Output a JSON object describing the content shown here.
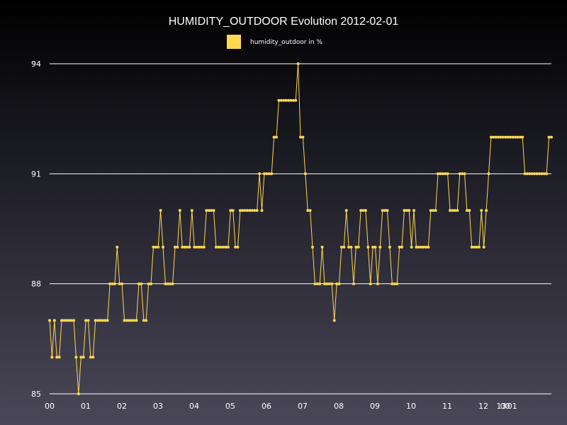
{
  "colors": {
    "series": "#ffd84f",
    "grid": "#ffffff",
    "text": "#ffffff"
  },
  "chart_data": {
    "type": "line",
    "title": "HUMIDITY_OUTDOOR Evolution 2012-02-01",
    "xlabel": "",
    "ylabel": "",
    "ylim": [
      85,
      94
    ],
    "yticks": [
      85,
      88,
      91,
      94
    ],
    "grid": true,
    "legend_placement": "top-center",
    "x_tick_labels": [
      "00",
      "01",
      "02",
      "03",
      "04",
      "05",
      "06",
      "07",
      "08",
      "09",
      "10",
      "11",
      "12",
      "13",
      "00",
      "01"
    ],
    "x_tick_positions_hours": [
      0,
      1,
      2,
      3,
      4,
      5,
      6,
      7,
      8,
      9,
      10,
      11,
      12,
      12.5,
      12.6,
      12.8
    ],
    "x_hour_range": [
      0,
      14
    ],
    "series": [
      {
        "name": "humidity_outdoor in %",
        "values": [
          87,
          86,
          87,
          86,
          86,
          87,
          87,
          87,
          87,
          87,
          87,
          86,
          85,
          86,
          86,
          87,
          87,
          86,
          86,
          87,
          87,
          87,
          87,
          87,
          87,
          88,
          88,
          88,
          89,
          88,
          88,
          87,
          87,
          87,
          87,
          87,
          87,
          88,
          88,
          87,
          87,
          88,
          88,
          89,
          89,
          89,
          90,
          89,
          88,
          88,
          88,
          88,
          89,
          89,
          90,
          89,
          89,
          89,
          89,
          90,
          89,
          89,
          89,
          89,
          89,
          90,
          90,
          90,
          90,
          89,
          89,
          89,
          89,
          89,
          89,
          90,
          90,
          89,
          89,
          90,
          90,
          90,
          90,
          90,
          90,
          90,
          90,
          91,
          90,
          91,
          91,
          91,
          91,
          92,
          92,
          93,
          93,
          93,
          93,
          93,
          93,
          93,
          93,
          94,
          92,
          92,
          91,
          90,
          90,
          89,
          88,
          88,
          88,
          89,
          88,
          88,
          88,
          88,
          87,
          88,
          88,
          89,
          89,
          90,
          89,
          89,
          88,
          89,
          89,
          90,
          90,
          90,
          89,
          88,
          89,
          89,
          88,
          89,
          90,
          90,
          90,
          89,
          88,
          88,
          88,
          89,
          89,
          90,
          90,
          90,
          89,
          90,
          89,
          89,
          89,
          89,
          89,
          89,
          90,
          90,
          90,
          91,
          91,
          91,
          91,
          91,
          90,
          90,
          90,
          90,
          91,
          91,
          91,
          90,
          90,
          89,
          89,
          89,
          89,
          90,
          89,
          90,
          91,
          92,
          92,
          92,
          92,
          92,
          92,
          92,
          92,
          92,
          92,
          92,
          92,
          92,
          92,
          91,
          91,
          91,
          91,
          91,
          91,
          91,
          91,
          91,
          91,
          92,
          92
        ]
      }
    ]
  }
}
